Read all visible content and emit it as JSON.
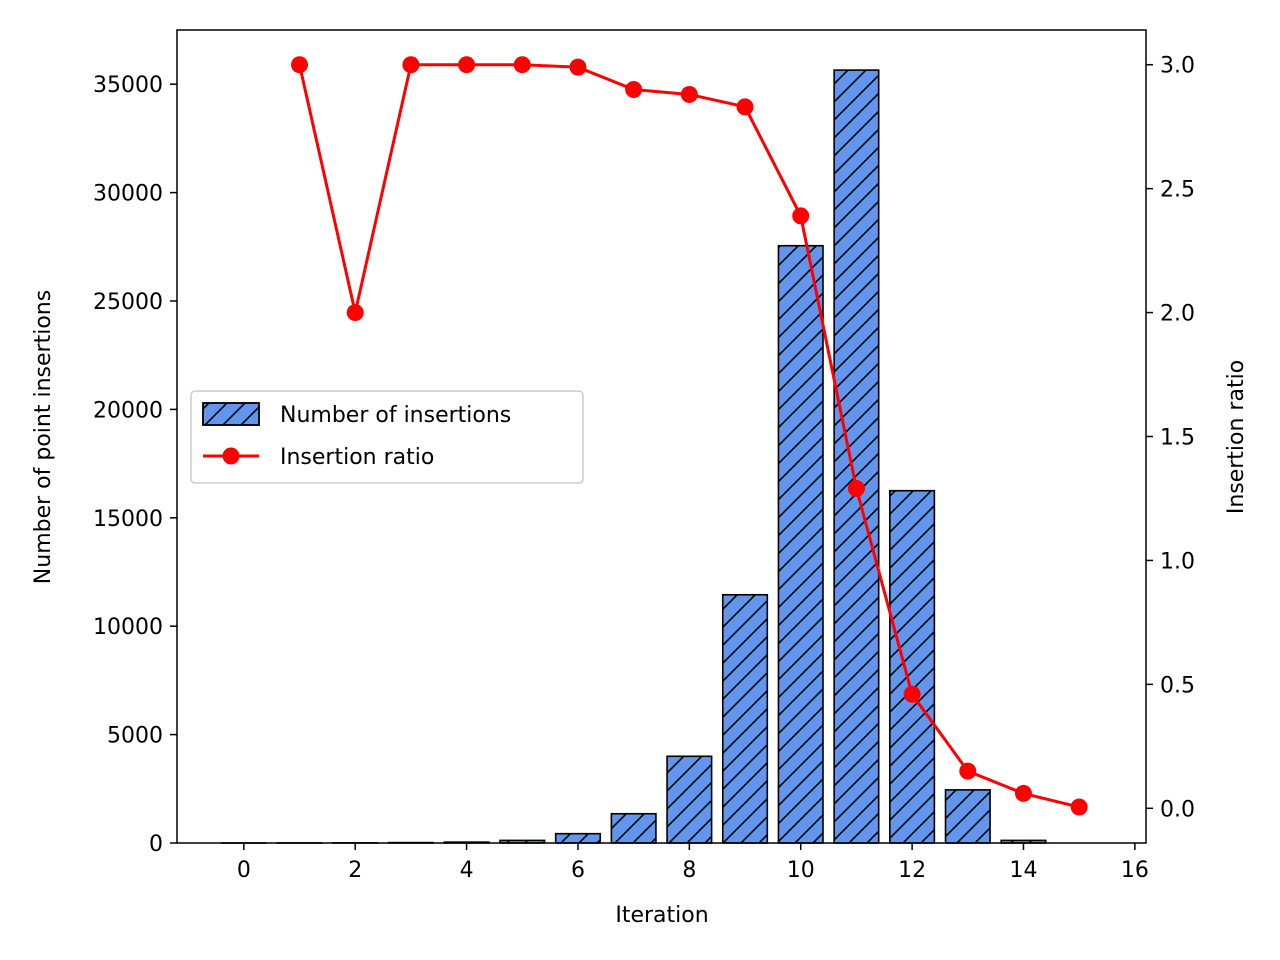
{
  "chart_data": {
    "type": "bar",
    "xlabel": "Iteration",
    "ylabel": "Number of point insertions",
    "y2label": "Insertion ratio",
    "xlim": [
      -1.2,
      16.2
    ],
    "ylim": [
      0,
      37500
    ],
    "y2lim": [
      -0.14,
      3.14
    ],
    "xticks": [
      0,
      2,
      4,
      6,
      8,
      10,
      12,
      14,
      16
    ],
    "yticks": [
      0,
      5000,
      10000,
      15000,
      20000,
      25000,
      30000,
      35000
    ],
    "y2ticks": [
      0.0,
      0.5,
      1.0,
      1.5,
      2.0,
      2.5,
      3.0
    ],
    "y2tick_labels": [
      "0.0",
      "0.5",
      "1.0",
      "1.5",
      "2.0",
      "2.5",
      "3.0"
    ],
    "bar_color": "#6495ed",
    "line_color": "#ff0000",
    "legend_position": "center-left",
    "grid": false,
    "series": [
      {
        "name": "Number of insertions",
        "type": "bar",
        "hatch": "/",
        "x": [
          0,
          1,
          2,
          3,
          4,
          5,
          6,
          7,
          8,
          9,
          10,
          11,
          12,
          13,
          14
        ],
        "values": [
          1,
          3,
          6,
          18,
          40,
          120,
          430,
          1350,
          4000,
          11450,
          27550,
          35650,
          16250,
          2450,
          120
        ]
      },
      {
        "name": "Insertion ratio",
        "type": "line",
        "marker": "circle",
        "x": [
          1,
          2,
          3,
          4,
          5,
          6,
          7,
          8,
          9,
          10,
          11,
          12,
          13,
          14,
          15
        ],
        "values": [
          3.0,
          2.0,
          3.0,
          3.0,
          3.0,
          2.99,
          2.9,
          2.88,
          2.83,
          2.39,
          1.29,
          0.46,
          0.15,
          0.06,
          0.005
        ]
      }
    ]
  }
}
